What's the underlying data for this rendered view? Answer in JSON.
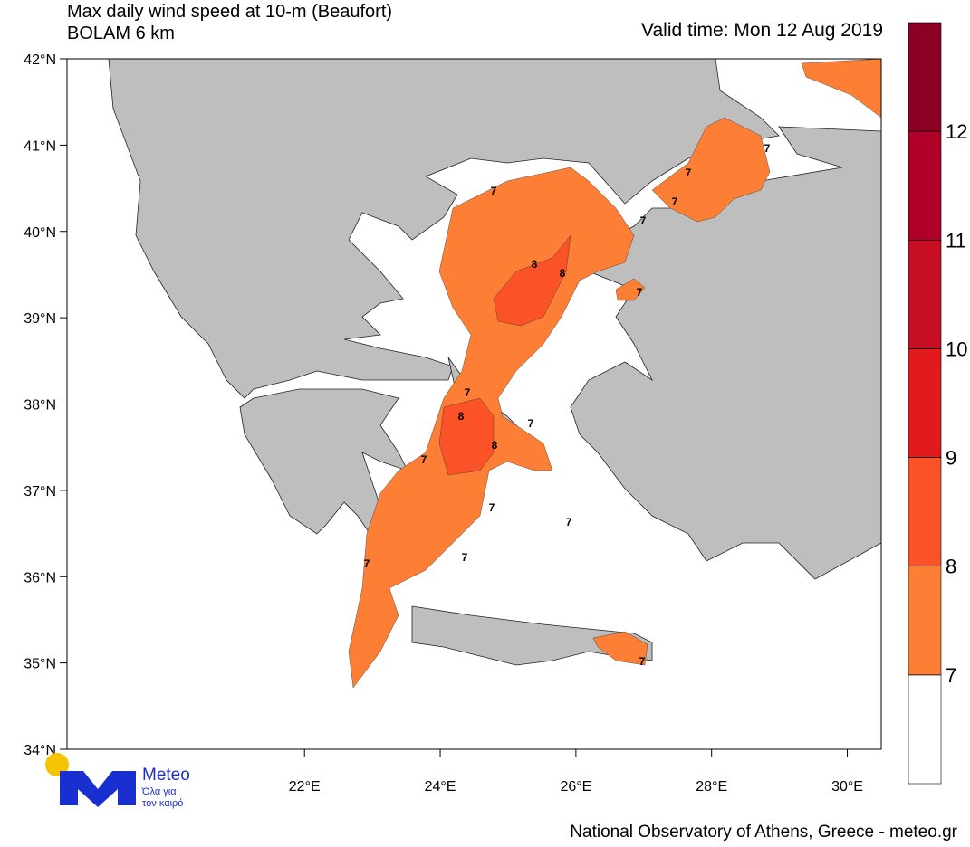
{
  "header": {
    "title_line1": "Max daily wind speed at 10-m (Beaufort)",
    "title_line2": "BOLAM 6 km",
    "valid_time": "Valid time: Mon 12 Aug 2019"
  },
  "map": {
    "lon_range": [
      18.5,
      30.5
    ],
    "lat_range": [
      34,
      42
    ],
    "lat_ticks": [
      {
        "value": 34,
        "label": "34°N"
      },
      {
        "value": 35,
        "label": "35°N"
      },
      {
        "value": 36,
        "label": "36°N"
      },
      {
        "value": 37,
        "label": "37°N"
      },
      {
        "value": 38,
        "label": "38°N"
      },
      {
        "value": 39,
        "label": "39°N"
      },
      {
        "value": 40,
        "label": "40°N"
      },
      {
        "value": 41,
        "label": "41°N"
      },
      {
        "value": 42,
        "label": "42°N"
      }
    ],
    "lon_ticks": [
      {
        "value": 22,
        "label": "22°E"
      },
      {
        "value": 24,
        "label": "24°E"
      },
      {
        "value": 26,
        "label": "26°E"
      },
      {
        "value": 28,
        "label": "28°E"
      },
      {
        "value": 30,
        "label": "30°E"
      }
    ],
    "contour_labels": [
      "7",
      "7",
      "7",
      "7",
      "7",
      "7",
      "7",
      "7",
      "7",
      "7",
      "7",
      "7",
      "7",
      "7",
      "8",
      "8",
      "8",
      "8"
    ]
  },
  "colorbar": {
    "levels": [
      7,
      8,
      9,
      10,
      11,
      12
    ],
    "colors": [
      "#ffffff",
      "#fd7f35",
      "#fc5228",
      "#e31a1c",
      "#c70e22",
      "#b00028",
      "#8c0026"
    ]
  },
  "logo": {
    "name": "Meteo",
    "tagline_1": "Όλα για",
    "tagline_2": "τον καιρό"
  },
  "footer": "National Observatory of Athens, Greece - meteo.gr"
}
